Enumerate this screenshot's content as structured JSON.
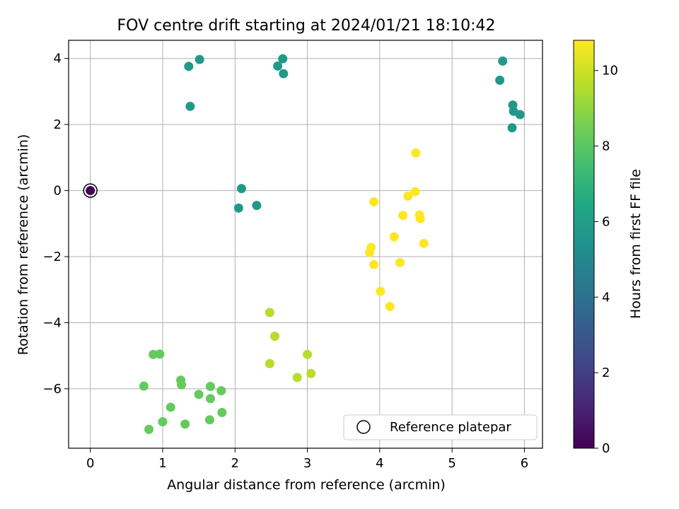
{
  "chart_data": {
    "type": "scatter",
    "title": "FOV centre drift starting at 2024/01/21 18:10:42",
    "xlabel": "Angular distance from reference (arcmin)",
    "ylabel": "Rotation from reference (arcmin)",
    "xlim": [
      -0.3,
      6.25
    ],
    "ylim": [
      -7.8,
      4.55
    ],
    "x_ticks": [
      0,
      1,
      2,
      3,
      4,
      5,
      6
    ],
    "y_ticks": [
      -6,
      -4,
      -2,
      0,
      2,
      4
    ],
    "grid": true,
    "colorbar": {
      "label": "Hours from first FF file",
      "colormap": "viridis",
      "range": [
        0,
        10.8
      ],
      "ticks": [
        0,
        2,
        4,
        6,
        8,
        10
      ]
    },
    "legend": {
      "position": "lower-right",
      "entries": [
        "Reference platepar"
      ]
    },
    "reference_point": {
      "x": 0,
      "y": 0,
      "hours": 0
    },
    "points": [
      {
        "x": 1.36,
        "y": 3.76,
        "hours": 5.8
      },
      {
        "x": 1.51,
        "y": 3.97,
        "hours": 5.8
      },
      {
        "x": 1.38,
        "y": 2.55,
        "hours": 5.8
      },
      {
        "x": 2.66,
        "y": 3.99,
        "hours": 5.8
      },
      {
        "x": 2.59,
        "y": 3.77,
        "hours": 5.8
      },
      {
        "x": 2.67,
        "y": 3.54,
        "hours": 5.8
      },
      {
        "x": 5.7,
        "y": 3.92,
        "hours": 5.8
      },
      {
        "x": 5.66,
        "y": 3.34,
        "hours": 5.8
      },
      {
        "x": 5.84,
        "y": 2.59,
        "hours": 5.8
      },
      {
        "x": 5.85,
        "y": 2.4,
        "hours": 5.8
      },
      {
        "x": 5.94,
        "y": 2.3,
        "hours": 5.8
      },
      {
        "x": 5.83,
        "y": 1.9,
        "hours": 5.8
      },
      {
        "x": 2.09,
        "y": 0.06,
        "hours": 5.8
      },
      {
        "x": 2.05,
        "y": -0.53,
        "hours": 5.8
      },
      {
        "x": 2.3,
        "y": -0.45,
        "hours": 5.8
      },
      {
        "x": 0.87,
        "y": -4.96,
        "hours": 8.2
      },
      {
        "x": 0.96,
        "y": -4.95,
        "hours": 8.2
      },
      {
        "x": 0.74,
        "y": -5.92,
        "hours": 8.2
      },
      {
        "x": 1.25,
        "y": -5.74,
        "hours": 8.2
      },
      {
        "x": 1.26,
        "y": -5.88,
        "hours": 8.2
      },
      {
        "x": 1.66,
        "y": -5.93,
        "hours": 8.2
      },
      {
        "x": 1.81,
        "y": -6.06,
        "hours": 8.2
      },
      {
        "x": 1.5,
        "y": -6.17,
        "hours": 8.2
      },
      {
        "x": 1.66,
        "y": -6.3,
        "hours": 8.2
      },
      {
        "x": 1.11,
        "y": -6.56,
        "hours": 8.2
      },
      {
        "x": 1.82,
        "y": -6.72,
        "hours": 8.2
      },
      {
        "x": 1.65,
        "y": -6.94,
        "hours": 8.2
      },
      {
        "x": 1.0,
        "y": -7.0,
        "hours": 8.2
      },
      {
        "x": 1.31,
        "y": -7.07,
        "hours": 8.2
      },
      {
        "x": 0.81,
        "y": -7.23,
        "hours": 8.2
      },
      {
        "x": 2.48,
        "y": -3.69,
        "hours": 9.6
      },
      {
        "x": 2.55,
        "y": -4.41,
        "hours": 9.6
      },
      {
        "x": 2.48,
        "y": -5.24,
        "hours": 9.6
      },
      {
        "x": 3.0,
        "y": -4.96,
        "hours": 9.6
      },
      {
        "x": 3.05,
        "y": -5.54,
        "hours": 9.6
      },
      {
        "x": 2.86,
        "y": -5.66,
        "hours": 9.6
      },
      {
        "x": 4.5,
        "y": 1.14,
        "hours": 10.8
      },
      {
        "x": 4.49,
        "y": -0.03,
        "hours": 10.8
      },
      {
        "x": 4.39,
        "y": -0.17,
        "hours": 10.8
      },
      {
        "x": 3.92,
        "y": -0.34,
        "hours": 10.8
      },
      {
        "x": 4.32,
        "y": -0.75,
        "hours": 10.8
      },
      {
        "x": 4.55,
        "y": -0.74,
        "hours": 10.8
      },
      {
        "x": 4.56,
        "y": -0.85,
        "hours": 10.8
      },
      {
        "x": 4.2,
        "y": -1.4,
        "hours": 10.8
      },
      {
        "x": 4.61,
        "y": -1.6,
        "hours": 10.8
      },
      {
        "x": 3.88,
        "y": -1.72,
        "hours": 10.8
      },
      {
        "x": 3.86,
        "y": -1.88,
        "hours": 10.8
      },
      {
        "x": 3.92,
        "y": -2.24,
        "hours": 10.8
      },
      {
        "x": 4.28,
        "y": -2.18,
        "hours": 10.8
      },
      {
        "x": 4.01,
        "y": -3.05,
        "hours": 10.8
      },
      {
        "x": 4.14,
        "y": -3.51,
        "hours": 10.8
      }
    ]
  }
}
